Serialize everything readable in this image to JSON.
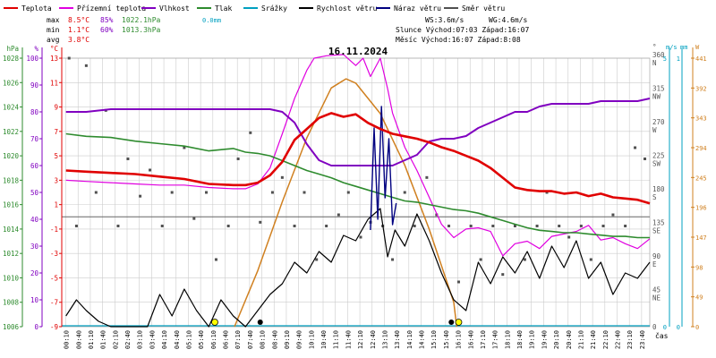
{
  "chart_data": {
    "type": "line",
    "title": "16.11.2024",
    "xlabel": "čas",
    "colors": {
      "temperature": "#e00000",
      "dewpoint": "#e000e0",
      "humidity": "#8000c0",
      "pressure": "#2e8b2e",
      "precipitation": "#00a0c0",
      "wind_speed": "#000000",
      "wind_gust": "#000080",
      "wind_direction": "#505050",
      "sun": "#d08020",
      "grid": "#cccccc"
    },
    "legend": [
      {
        "key": "temperature",
        "label": "Teplota"
      },
      {
        "key": "dewpoint",
        "label": "Přízemní teplota"
      },
      {
        "key": "humidity",
        "label": "Vlhkost"
      },
      {
        "key": "pressure",
        "label": "Tlak"
      },
      {
        "key": "precipitation",
        "label": "Srážky"
      },
      {
        "key": "wind_speed",
        "label": "Rychlost větru"
      },
      {
        "key": "wind_gust",
        "label": "Náraz větru"
      },
      {
        "key": "wind_direction",
        "label": "Směr větru"
      }
    ],
    "stats": {
      "rows": [
        {
          "label": "max",
          "temp": "8.5°C",
          "hum": "85%",
          "press": "1022.1hPa",
          "precip": "0.0mm"
        },
        {
          "label": "min",
          "temp": "1.1°C",
          "hum": "60%",
          "press": "1013.3hPa",
          "precip": ""
        },
        {
          "label": "avg",
          "temp": "3.8°C",
          "hum": "",
          "press": "",
          "precip": ""
        }
      ],
      "ws": "WS:3.6m/s",
      "wg": "WG:4.6m/s",
      "sun_line": "Slunce Východ:07:03  Západ:16:07",
      "moon_line": "Měsíc  Východ:16:07  Západ:8:08"
    },
    "axes": {
      "pressure": {
        "unit": "hPa",
        "ticks": [
          "1006",
          "1008",
          "1010",
          "1012",
          "1014",
          "1016",
          "1018",
          "1020",
          "1022",
          "1024",
          "1026",
          "1028"
        ],
        "range": [
          1006,
          1028
        ]
      },
      "humidity": {
        "unit": "%",
        "ticks": [
          "0",
          "10",
          "20",
          "30",
          "40",
          "50",
          "60",
          "70",
          "80",
          "90",
          "100"
        ],
        "range": [
          0,
          100
        ]
      },
      "temperature": {
        "unit": "°C",
        "ticks": [
          "-9",
          "-7",
          "-5",
          "-3",
          "-1",
          "1",
          "3",
          "5",
          "7",
          "9",
          "11",
          "13"
        ],
        "range": [
          -9,
          13
        ]
      },
      "direction": {
        "unit": "°",
        "ticks": [
          "0",
          "45 NE",
          "90 E",
          "135 SE",
          "180 S",
          "225 SW",
          "270 W",
          "315 NW",
          "360 N"
        ],
        "range": [
          0,
          360
        ]
      },
      "wind": {
        "unit": "m/s",
        "ticks": [
          "0",
          "5"
        ],
        "range": [
          0,
          5
        ]
      },
      "precip": {
        "unit": "mm",
        "ticks": [
          "0",
          "1"
        ],
        "range": [
          0,
          1
        ]
      },
      "sun": {
        "unit": "W",
        "ticks": [
          "0",
          "49",
          "98",
          "147",
          "196",
          "245",
          "294",
          "343",
          "392",
          "441"
        ],
        "range": [
          0,
          441
        ]
      }
    },
    "x_ticks": [
      "00:10",
      "00:40",
      "01:10",
      "01:40",
      "02:10",
      "02:40",
      "03:10",
      "03:40",
      "04:10",
      "04:40",
      "05:10",
      "05:40",
      "06:10",
      "06:40",
      "07:10",
      "07:40",
      "08:10",
      "08:40",
      "09:10",
      "09:40",
      "10:10",
      "10:40",
      "11:10",
      "11:40",
      "12:10",
      "12:40",
      "13:10",
      "13:40",
      "14:10",
      "14:40",
      "15:10",
      "15:40",
      "16:10",
      "16:40",
      "17:10",
      "17:40",
      "18:10",
      "18:40",
      "19:10",
      "19:40",
      "20:10",
      "20:40",
      "21:10",
      "21:40",
      "22:10",
      "22:40",
      "23:10",
      "23:40"
    ],
    "series": {
      "temperature": {
        "x": [
          0.17,
          1,
          2,
          3,
          4,
          5,
          6,
          7,
          7.5,
          8,
          8.5,
          9,
          9.5,
          10,
          10.5,
          11,
          11.5,
          12,
          12.5,
          13,
          13.5,
          14,
          14.5,
          15,
          15.5,
          16,
          16.5,
          17,
          17.5,
          18,
          18.5,
          19,
          19.5,
          20,
          20.5,
          21,
          21.5,
          22,
          22.5,
          23,
          23.5,
          24
        ],
        "y": [
          3.8,
          3.7,
          3.6,
          3.5,
          3.3,
          3.1,
          2.7,
          2.6,
          2.6,
          2.8,
          3.4,
          4.5,
          6.3,
          7.2,
          8.1,
          8.5,
          8.2,
          8.4,
          7.7,
          7.2,
          6.8,
          6.6,
          6.4,
          6.1,
          5.7,
          5.4,
          5.0,
          4.6,
          4.0,
          3.2,
          2.4,
          2.2,
          2.1,
          2.1,
          1.9,
          2.0,
          1.7,
          1.9,
          1.6,
          1.5,
          1.4,
          1.1
        ]
      },
      "dewpoint": {
        "x": [
          0.17,
          1,
          2,
          3,
          4,
          5,
          6,
          7,
          7.5,
          8,
          8.5,
          9,
          9.5,
          10,
          10.3,
          10.8,
          11.5,
          12,
          12.3,
          12.6,
          13,
          13.3,
          13.5,
          14,
          14.5,
          15,
          15.5,
          16,
          16.5,
          17,
          17.5,
          18,
          18.5,
          19,
          19.5,
          20,
          20.5,
          21,
          21.5,
          22,
          22.5,
          23,
          23.5,
          24
        ],
        "y": [
          3.0,
          2.9,
          2.8,
          2.7,
          2.6,
          2.6,
          2.4,
          2.3,
          2.3,
          2.7,
          4.0,
          6.8,
          9.7,
          12.0,
          13.0,
          13.2,
          13.3,
          12.4,
          13.0,
          11.5,
          13.0,
          10.5,
          8.5,
          5.7,
          3.8,
          1.6,
          -0.6,
          -1.7,
          -1.0,
          -0.9,
          -1.2,
          -3.2,
          -2.2,
          -2.0,
          -2.6,
          -1.6,
          -1.4,
          -1.2,
          -0.7,
          -1.9,
          -1.7,
          -2.2,
          -2.6,
          -1.8
        ]
      },
      "humidity": {
        "x": [
          0.17,
          1,
          2,
          3,
          4,
          5,
          6,
          7,
          7.5,
          8,
          8.5,
          9,
          9.5,
          10,
          10.5,
          11,
          11.5,
          12,
          12.5,
          13,
          13.5,
          14,
          14.5,
          15,
          15.5,
          16,
          16.5,
          17,
          17.5,
          18,
          18.5,
          19,
          19.5,
          20,
          20.5,
          21,
          21.5,
          22,
          22.5,
          23,
          23.5,
          24
        ],
        "y": [
          80,
          80,
          81,
          81,
          81,
          81,
          81,
          81,
          81,
          81,
          81,
          80,
          76,
          68,
          62,
          60,
          60,
          60,
          60,
          60,
          60,
          62,
          64,
          69,
          70,
          70,
          71,
          74,
          76,
          78,
          80,
          80,
          82,
          83,
          83,
          83,
          83,
          84,
          84,
          84,
          84,
          85
        ]
      },
      "pressure": {
        "x": [
          0.17,
          1,
          2,
          3,
          4,
          5,
          6,
          7,
          7.5,
          8,
          8.5,
          9,
          9.5,
          10,
          10.5,
          11,
          11.5,
          12,
          12.5,
          13,
          13.5,
          14,
          14.5,
          15,
          15.5,
          16,
          16.5,
          17,
          17.5,
          18,
          18.5,
          19,
          19.5,
          20,
          20.5,
          21,
          21.5,
          22,
          22.5,
          23,
          23.5,
          24
        ],
        "y": [
          1021.8,
          1021.6,
          1021.5,
          1021.2,
          1021.0,
          1020.8,
          1020.4,
          1020.6,
          1020.3,
          1020.2,
          1020.0,
          1019.6,
          1019.2,
          1018.8,
          1018.5,
          1018.2,
          1017.8,
          1017.5,
          1017.2,
          1016.9,
          1016.6,
          1016.3,
          1016.2,
          1016.0,
          1015.8,
          1015.6,
          1015.5,
          1015.3,
          1015.0,
          1014.7,
          1014.4,
          1014.1,
          1013.9,
          1013.8,
          1013.7,
          1013.7,
          1013.6,
          1013.5,
          1013.4,
          1013.4,
          1013.3,
          1013.3
        ]
      },
      "wind_speed": {
        "x": [
          0.17,
          0.6,
          1,
          1.5,
          2,
          2.5,
          3,
          3.5,
          4,
          4.5,
          5,
          5.5,
          6,
          6.5,
          7,
          7.5,
          8,
          8.5,
          9,
          9.5,
          10,
          10.5,
          11,
          11.5,
          12,
          12.5,
          13,
          13.3,
          13.6,
          14,
          14.5,
          15,
          15.5,
          16,
          16.5,
          17,
          17.5,
          18,
          18.5,
          19,
          19.5,
          20,
          20.5,
          21,
          21.5,
          22,
          22.5,
          23,
          23.5,
          24
        ],
        "y": [
          0.2,
          0.5,
          0.3,
          0.1,
          0.0,
          0.0,
          0.0,
          0.0,
          0.6,
          0.2,
          0.7,
          0.3,
          0.0,
          0.5,
          0.2,
          0.0,
          0.3,
          0.6,
          0.8,
          1.2,
          1.0,
          1.4,
          1.2,
          1.7,
          1.6,
          2.0,
          2.2,
          1.3,
          1.8,
          1.5,
          2.1,
          1.6,
          1.0,
          0.5,
          0.3,
          1.2,
          0.8,
          1.3,
          1.0,
          1.4,
          0.9,
          1.5,
          1.1,
          1.6,
          0.9,
          1.2,
          0.6,
          1.0,
          0.9,
          1.2
        ]
      },
      "wind_gust": {
        "x": [
          12.6,
          12.75,
          12.9,
          13.05,
          13.2,
          13.35,
          13.5,
          13.65
        ],
        "y": [
          1.8,
          3.7,
          2.0,
          4.1,
          2.4,
          3.5,
          1.9,
          2.3
        ]
      },
      "sun": {
        "x": [
          7.05,
          8,
          9,
          10,
          11,
          11.6,
          12,
          13,
          14,
          15,
          16,
          16.12
        ],
        "y": [
          0,
          92,
          205,
          310,
          392,
          407,
          400,
          350,
          265,
          160,
          40,
          0
        ]
      },
      "wind_direction": {
        "x": [
          0.3,
          0.6,
          1,
          1.4,
          1.8,
          2.3,
          2.7,
          3.2,
          3.6,
          4.1,
          4.5,
          5.0,
          5.4,
          5.9,
          6.3,
          6.8,
          7.2,
          7.7,
          8.1,
          8.6,
          9.0,
          9.5,
          9.9,
          10.4,
          10.8,
          11.3,
          11.7,
          12.2,
          12.6,
          13.1,
          13.5,
          14.0,
          14.4,
          14.9,
          15.3,
          15.8,
          16.2,
          16.7,
          17.1,
          17.6,
          18.0,
          18.5,
          18.9,
          19.4,
          19.8,
          20.3,
          20.7,
          21.2,
          21.6,
          22.1,
          22.5,
          23.0,
          23.4,
          23.8
        ],
        "y": [
          360,
          135,
          350,
          180,
          290,
          135,
          225,
          175,
          210,
          135,
          180,
          240,
          145,
          180,
          90,
          135,
          225,
          260,
          140,
          180,
          200,
          135,
          180,
          90,
          135,
          150,
          180,
          120,
          140,
          135,
          90,
          180,
          135,
          200,
          150,
          135,
          60,
          135,
          90,
          135,
          70,
          135,
          90,
          135,
          180,
          135,
          120,
          135,
          90,
          135,
          150,
          135,
          240,
          225
        ]
      }
    }
  }
}
